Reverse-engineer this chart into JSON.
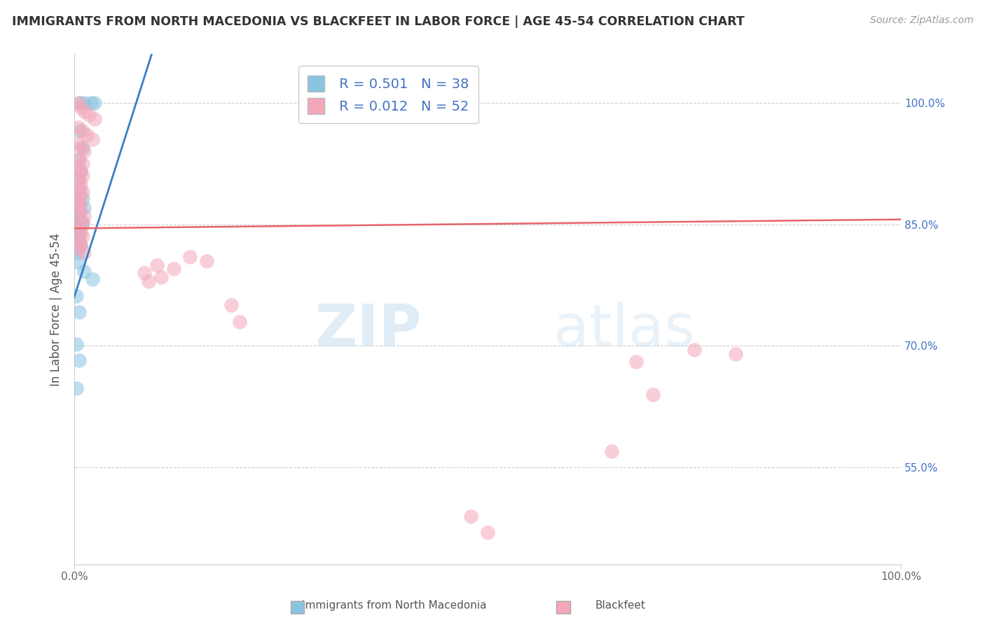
{
  "title": "IMMIGRANTS FROM NORTH MACEDONIA VS BLACKFEET IN LABOR FORCE | AGE 45-54 CORRELATION CHART",
  "source": "Source: ZipAtlas.com",
  "ylabel": "In Labor Force | Age 45-54",
  "legend_label1": "Immigrants from North Macedonia",
  "legend_label2": "Blackfeet",
  "R1": 0.501,
  "N1": 38,
  "R2": 0.012,
  "N2": 52,
  "xlim": [
    0.0,
    1.0
  ],
  "ylim": [
    0.43,
    1.06
  ],
  "yticks": [
    0.55,
    0.7,
    0.85,
    1.0
  ],
  "ytick_labels": [
    "55.0%",
    "70.0%",
    "85.0%",
    "100.0%"
  ],
  "color_blue": "#89c4e1",
  "color_pink": "#f4a7b9",
  "color_trend_blue": "#3a7fc1",
  "color_trend_pink": "#e8636a",
  "watermark_zip": "ZIP",
  "watermark_atlas": "atlas",
  "blue_x": [
    0.007,
    0.012,
    0.02,
    0.025,
    0.007,
    0.01,
    0.005,
    0.008,
    0.004,
    0.007,
    0.01,
    0.006,
    0.004,
    0.012,
    0.007,
    0.004,
    0.004,
    0.006,
    0.01,
    0.004,
    0.007,
    0.003,
    0.006,
    0.003,
    0.006,
    0.003,
    0.006,
    0.008,
    0.003,
    0.005,
    0.005,
    0.012,
    0.022,
    0.003,
    0.006,
    0.003,
    0.006,
    0.003
  ],
  "blue_y": [
    1.0,
    1.0,
    1.0,
    1.0,
    0.965,
    0.945,
    0.93,
    0.915,
    0.905,
    0.893,
    0.882,
    0.878,
    0.873,
    0.87,
    0.865,
    0.862,
    0.86,
    0.855,
    0.852,
    0.85,
    0.848,
    0.845,
    0.843,
    0.84,
    0.836,
    0.833,
    0.828,
    0.824,
    0.82,
    0.815,
    0.803,
    0.792,
    0.782,
    0.762,
    0.742,
    0.702,
    0.682,
    0.648
  ],
  "pink_x": [
    0.005,
    0.008,
    0.012,
    0.018,
    0.025,
    0.005,
    0.01,
    0.015,
    0.022,
    0.005,
    0.008,
    0.012,
    0.006,
    0.01,
    0.005,
    0.008,
    0.01,
    0.006,
    0.008,
    0.005,
    0.01,
    0.008,
    0.006,
    0.005,
    0.008,
    0.005,
    0.012,
    0.008,
    0.01,
    0.005,
    0.008,
    0.01,
    0.006,
    0.008,
    0.005,
    0.012,
    0.14,
    0.16,
    0.1,
    0.12,
    0.085,
    0.105,
    0.09,
    0.19,
    0.2,
    0.75,
    0.8,
    0.68,
    0.7,
    0.65,
    0.48,
    0.5
  ],
  "pink_y": [
    1.0,
    0.995,
    0.99,
    0.985,
    0.98,
    0.97,
    0.965,
    0.96,
    0.955,
    0.95,
    0.945,
    0.94,
    0.93,
    0.925,
    0.92,
    0.915,
    0.91,
    0.905,
    0.9,
    0.895,
    0.89,
    0.885,
    0.88,
    0.875,
    0.87,
    0.865,
    0.86,
    0.855,
    0.85,
    0.845,
    0.84,
    0.835,
    0.83,
    0.825,
    0.82,
    0.815,
    0.81,
    0.805,
    0.8,
    0.795,
    0.79,
    0.785,
    0.78,
    0.75,
    0.73,
    0.695,
    0.69,
    0.68,
    0.64,
    0.57,
    0.49,
    0.47
  ]
}
